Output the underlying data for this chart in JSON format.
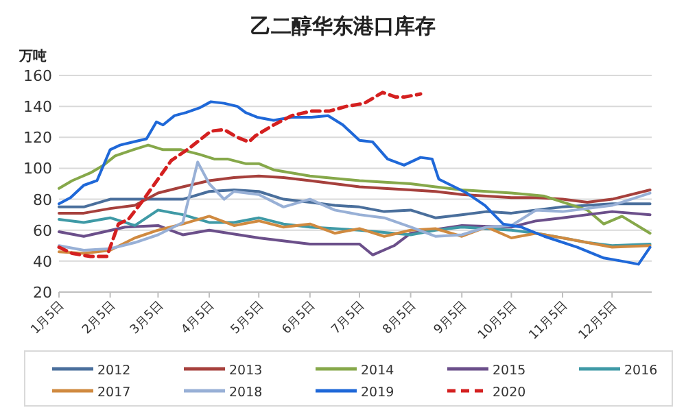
{
  "chart_data": {
    "type": "line",
    "title": "乙二醇华东港口库存",
    "ylabel": "万吨",
    "ylim": [
      20,
      160
    ],
    "yticks": [
      20,
      40,
      60,
      80,
      100,
      120,
      140,
      160
    ],
    "xlim": [
      "--01-05",
      "--12-29"
    ],
    "xticks": [
      {
        "value": "--01-05",
        "label": "1月5日"
      },
      {
        "value": "--02-05",
        "label": "2月5日"
      },
      {
        "value": "--03-05",
        "label": "3月5日"
      },
      {
        "value": "--04-05",
        "label": "4月5日"
      },
      {
        "value": "--05-05",
        "label": "5月5日"
      },
      {
        "value": "--06-05",
        "label": "6月5日"
      },
      {
        "value": "--07-05",
        "label": "7月5日"
      },
      {
        "value": "--08-05",
        "label": "8月5日"
      },
      {
        "value": "--09-05",
        "label": "9月5日"
      },
      {
        "value": "--10-05",
        "label": "10月5日"
      },
      {
        "value": "--11-05",
        "label": "11月5日"
      },
      {
        "value": "--12-05",
        "label": "12月5日"
      }
    ],
    "grid": "y",
    "legend": "bottom",
    "marker": "none",
    "line_style": "solid",
    "series": [
      {
        "name": "2012",
        "color": "#4a6f9c",
        "x": [
          "--01-05",
          "--01-20",
          "--02-05",
          "--02-20",
          "--03-05",
          "--03-20",
          "--04-05",
          "--04-20",
          "--05-05",
          "--05-20",
          "--06-05",
          "--06-20",
          "--07-05",
          "--07-20",
          "--08-05",
          "--08-20",
          "--09-05",
          "--09-20",
          "--10-05",
          "--10-20",
          "--11-05",
          "--11-20",
          "--12-05",
          "--12-28"
        ],
        "values": [
          75,
          75,
          80,
          80,
          80,
          80,
          85,
          86,
          85,
          80,
          78,
          76,
          75,
          72,
          73,
          68,
          70,
          72,
          71,
          73,
          75,
          76,
          77,
          77
        ]
      },
      {
        "name": "2013",
        "color": "#a6403c",
        "x": [
          "--01-05",
          "--01-20",
          "--02-05",
          "--02-20",
          "--03-05",
          "--03-20",
          "--04-05",
          "--04-20",
          "--05-05",
          "--05-20",
          "--06-05",
          "--06-20",
          "--07-05",
          "--07-20",
          "--08-05",
          "--08-20",
          "--09-05",
          "--09-20",
          "--10-05",
          "--10-20",
          "--11-05",
          "--11-20",
          "--12-05",
          "--12-28"
        ],
        "values": [
          71,
          71,
          74,
          76,
          84,
          88,
          92,
          94,
          95,
          94,
          92,
          90,
          88,
          87,
          86,
          85,
          83,
          82,
          81,
          81,
          80,
          78,
          80,
          86
        ]
      },
      {
        "name": "2014",
        "color": "#86a84a",
        "x": [
          "--01-05",
          "--01-13",
          "--01-24",
          "--02-01",
          "--02-08",
          "--02-19",
          "--02-28",
          "--03-08",
          "--03-19",
          "--03-30",
          "--04-08",
          "--04-16",
          "--04-27",
          "--05-05",
          "--05-14",
          "--06-05",
          "--07-05",
          "--08-05",
          "--08-20",
          "--09-05",
          "--09-20",
          "--10-05",
          "--10-25",
          "--11-20",
          "--11-30",
          "--12-11",
          "--12-28"
        ],
        "values": [
          87,
          92,
          97,
          102,
          108,
          112,
          115,
          112,
          112,
          109,
          106,
          106,
          103,
          103,
          99,
          95,
          92,
          90,
          88,
          86,
          85,
          84,
          82,
          73,
          64,
          69,
          58
        ]
      },
      {
        "name": "2015",
        "color": "#6b4f8a",
        "x": [
          "--01-05",
          "--01-20",
          "--02-14",
          "--03-05",
          "--03-20",
          "--04-05",
          "--05-05",
          "--06-05",
          "--07-05",
          "--07-13",
          "--07-26",
          "--08-05",
          "--09-05",
          "--10-05",
          "--10-20",
          "--11-05",
          "--11-20",
          "--12-05",
          "--12-28"
        ],
        "values": [
          59,
          56,
          62,
          63,
          57,
          60,
          55,
          51,
          51,
          44,
          50,
          58,
          63,
          62,
          66,
          68,
          70,
          72,
          70
        ]
      },
      {
        "name": "2016",
        "color": "#3f9aa6",
        "x": [
          "--01-05",
          "--01-20",
          "--02-05",
          "--02-20",
          "--03-05",
          "--03-20",
          "--04-05",
          "--04-20",
          "--05-05",
          "--05-20",
          "--06-05",
          "--07-05",
          "--08-05",
          "--08-20",
          "--09-05",
          "--10-05",
          "--10-20",
          "--11-05",
          "--11-20",
          "--12-05",
          "--12-28"
        ],
        "values": [
          67,
          65,
          68,
          63,
          73,
          70,
          65,
          65,
          68,
          64,
          62,
          60,
          57,
          60,
          62,
          60,
          58,
          55,
          52,
          50,
          51
        ]
      },
      {
        "name": "2017",
        "color": "#d08a40",
        "x": [
          "--01-05",
          "--01-20",
          "--02-05",
          "--02-20",
          "--03-05",
          "--03-20",
          "--04-05",
          "--04-20",
          "--05-05",
          "--05-20",
          "--06-05",
          "--06-20",
          "--07-05",
          "--07-20",
          "--08-05",
          "--08-20",
          "--09-05",
          "--09-20",
          "--10-05",
          "--10-20",
          "--11-05",
          "--11-20",
          "--12-05",
          "--12-28"
        ],
        "values": [
          46,
          45,
          47,
          55,
          60,
          64,
          69,
          63,
          66,
          62,
          64,
          58,
          61,
          56,
          60,
          61,
          56,
          62,
          55,
          58,
          55,
          52,
          49,
          50
        ]
      },
      {
        "name": "2018",
        "color": "#98b0d6",
        "x": [
          "--01-05",
          "--01-20",
          "--02-05",
          "--02-20",
          "--03-05",
          "--03-20",
          "--03-29",
          "--04-05",
          "--04-14",
          "--04-20",
          "--05-05",
          "--05-20",
          "--06-05",
          "--06-20",
          "--07-05",
          "--07-20",
          "--08-05",
          "--08-20",
          "--09-05",
          "--09-20",
          "--10-05",
          "--10-20",
          "--11-05",
          "--11-20",
          "--12-05",
          "--12-28"
        ],
        "values": [
          50,
          47,
          48,
          52,
          57,
          65,
          104,
          90,
          80,
          85,
          83,
          75,
          80,
          73,
          70,
          68,
          62,
          56,
          57,
          62,
          63,
          73,
          72,
          74,
          76,
          84
        ]
      },
      {
        "name": "2019",
        "color": "#1f68d8",
        "x": [
          "--01-05",
          "--01-12",
          "--01-20",
          "--01-28",
          "--02-05",
          "--02-11",
          "--02-19",
          "--02-27",
          "--03-04",
          "--03-08",
          "--03-15",
          "--03-22",
          "--03-30",
          "--04-06",
          "--04-14",
          "--04-22",
          "--04-27",
          "--05-04",
          "--05-14",
          "--05-25",
          "--06-06",
          "--06-16",
          "--06-25",
          "--07-05",
          "--07-13",
          "--07-22",
          "--08-01",
          "--08-11",
          "--08-18",
          "--08-22",
          "--09-08",
          "--09-19",
          "--09-30",
          "--10-11",
          "--10-25",
          "--11-14",
          "--11-30",
          "--12-11",
          "--12-21",
          "--12-28"
        ],
        "values": [
          77,
          81,
          89,
          92,
          112,
          115,
          117,
          119,
          130,
          128,
          134,
          136,
          139,
          143,
          142,
          140,
          136,
          133,
          131,
          133,
          133,
          134,
          128,
          118,
          117,
          106,
          102,
          107,
          106,
          93,
          84,
          76,
          64,
          62,
          56,
          49,
          42,
          40,
          38,
          49
        ]
      },
      {
        "name": "2020",
        "color": "#d42020",
        "line_style": "dashed",
        "x": [
          "--01-05",
          "--01-13",
          "--01-24",
          "--02-03",
          "--02-10",
          "--02-16",
          "--02-24",
          "--03-03",
          "--03-13",
          "--03-24",
          "--04-06",
          "--04-14",
          "--04-22",
          "--04-29",
          "--05-03",
          "--05-14",
          "--05-25",
          "--06-06",
          "--06-17",
          "--06-27",
          "--07-08",
          "--07-19",
          "--07-27",
          "--08-01",
          "--08-11"
        ],
        "values": [
          49,
          45,
          43,
          43,
          64,
          67,
          78,
          90,
          105,
          113,
          124,
          125,
          120,
          117,
          121,
          128,
          134,
          137,
          137,
          140,
          142,
          149,
          146,
          146,
          148
        ]
      }
    ]
  }
}
